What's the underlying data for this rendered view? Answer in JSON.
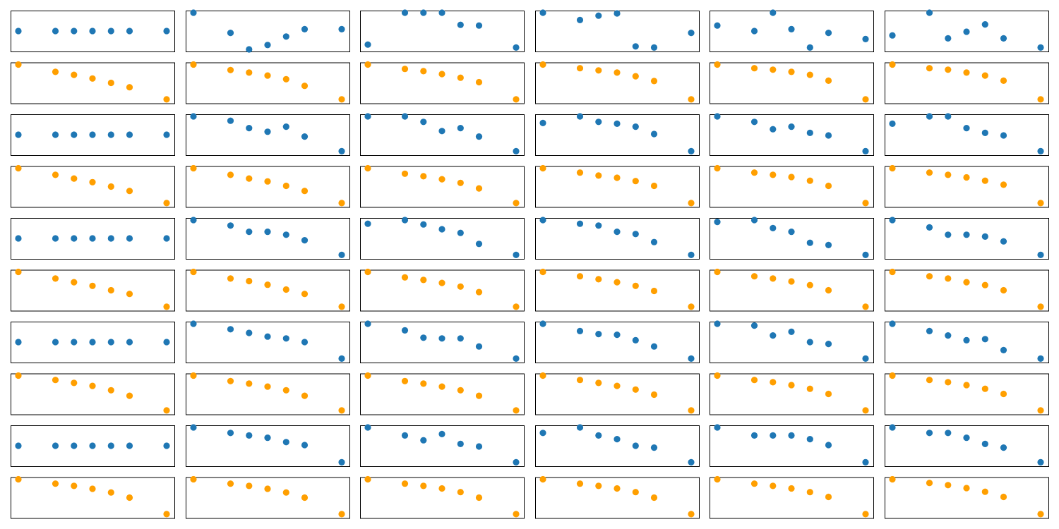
{
  "chart_data": {
    "type": "scatter",
    "layout": {
      "rows": 10,
      "cols": 6
    },
    "x": [
      0,
      2,
      3,
      4,
      5,
      6,
      8
    ],
    "series_colors": {
      "even_rows": "#1f77b4",
      "odd_rows": "#ff9f00"
    },
    "title": "",
    "xlabel": "",
    "ylabel": "",
    "grid": false,
    "ticks": false,
    "panels": [
      [
        {
          "y": [
            0.5,
            0.5,
            0.5,
            0.5,
            0.5,
            0.5,
            0.5
          ],
          "ylim": [
            0,
            1
          ]
        },
        {
          "y": [
            1.0,
            0.45,
            0.0,
            0.12,
            0.35,
            0.55,
            0.55
          ],
          "ylim": [
            0,
            1
          ]
        },
        {
          "y": [
            0.13,
            1.0,
            1.0,
            1.0,
            0.67,
            0.65,
            0.05
          ],
          "ylim": [
            0,
            1
          ]
        },
        {
          "y": [
            1.0,
            0.8,
            0.92,
            0.98,
            0.08,
            0.05,
            0.45
          ],
          "ylim": [
            0,
            1
          ]
        },
        {
          "y": [
            0.65,
            0.5,
            1.0,
            0.55,
            0.05,
            0.45,
            0.28
          ],
          "ylim": [
            0,
            1
          ]
        },
        {
          "y": [
            0.38,
            1.0,
            0.3,
            0.48,
            0.68,
            0.3,
            0.05
          ],
          "ylim": [
            0,
            1
          ]
        }
      ],
      [
        {
          "y": [
            1.0,
            0.8,
            0.72,
            0.62,
            0.5,
            0.38,
            0.05
          ],
          "ylim": [
            0,
            1
          ]
        },
        {
          "y": [
            1.0,
            0.85,
            0.78,
            0.7,
            0.6,
            0.42,
            0.05
          ],
          "ylim": [
            0,
            1
          ]
        },
        {
          "y": [
            1.0,
            0.88,
            0.82,
            0.74,
            0.64,
            0.52,
            0.05
          ],
          "ylim": [
            0,
            1
          ]
        },
        {
          "y": [
            1.0,
            0.9,
            0.84,
            0.78,
            0.68,
            0.55,
            0.05
          ],
          "ylim": [
            0,
            1
          ]
        },
        {
          "y": [
            1.0,
            0.9,
            0.86,
            0.8,
            0.72,
            0.56,
            0.05
          ],
          "ylim": [
            0,
            1
          ]
        },
        {
          "y": [
            1.0,
            0.9,
            0.86,
            0.78,
            0.7,
            0.56,
            0.05
          ],
          "ylim": [
            0,
            1
          ]
        }
      ],
      [
        {
          "y": [
            0.5,
            0.5,
            0.5,
            0.5,
            0.5,
            0.5,
            0.5
          ],
          "ylim": [
            0,
            1
          ]
        },
        {
          "y": [
            1.0,
            0.88,
            0.68,
            0.58,
            0.72,
            0.45,
            0.05
          ],
          "ylim": [
            0,
            1
          ]
        },
        {
          "y": [
            1.0,
            1.0,
            0.85,
            0.6,
            0.68,
            0.45,
            0.05
          ],
          "ylim": [
            0,
            1
          ]
        },
        {
          "y": [
            0.82,
            1.0,
            0.85,
            0.8,
            0.72,
            0.52,
            0.05
          ],
          "ylim": [
            0,
            1
          ]
        },
        {
          "y": [
            1.0,
            0.85,
            0.65,
            0.72,
            0.55,
            0.48,
            0.05
          ],
          "ylim": [
            0,
            1
          ]
        },
        {
          "y": [
            0.8,
            1.0,
            1.0,
            0.68,
            0.55,
            0.48,
            0.05
          ],
          "ylim": [
            0,
            1
          ]
        }
      ],
      [
        {
          "y": [
            1.0,
            0.82,
            0.72,
            0.62,
            0.5,
            0.38,
            0.05
          ],
          "ylim": [
            0,
            1
          ]
        },
        {
          "y": [
            1.0,
            0.82,
            0.72,
            0.64,
            0.52,
            0.38,
            0.05
          ],
          "ylim": [
            0,
            1
          ]
        },
        {
          "y": [
            1.0,
            0.85,
            0.78,
            0.7,
            0.6,
            0.45,
            0.05
          ],
          "ylim": [
            0,
            1
          ]
        },
        {
          "y": [
            1.0,
            0.88,
            0.8,
            0.74,
            0.65,
            0.52,
            0.05
          ],
          "ylim": [
            0,
            1
          ]
        },
        {
          "y": [
            1.0,
            0.88,
            0.82,
            0.76,
            0.66,
            0.52,
            0.05
          ],
          "ylim": [
            0,
            1
          ]
        },
        {
          "y": [
            1.0,
            0.88,
            0.82,
            0.75,
            0.66,
            0.55,
            0.05
          ],
          "ylim": [
            0,
            1
          ]
        }
      ],
      [
        {
          "y": [
            0.5,
            0.5,
            0.5,
            0.5,
            0.5,
            0.5,
            0.5
          ],
          "ylim": [
            0,
            1
          ]
        },
        {
          "y": [
            1.0,
            0.85,
            0.68,
            0.68,
            0.6,
            0.45,
            0.05
          ],
          "ylim": [
            0,
            1
          ]
        },
        {
          "y": [
            0.9,
            1.0,
            0.88,
            0.75,
            0.65,
            0.35,
            0.05
          ],
          "ylim": [
            0,
            1
          ]
        },
        {
          "y": [
            1.0,
            0.9,
            0.85,
            0.68,
            0.62,
            0.4,
            0.05
          ],
          "ylim": [
            0,
            1
          ]
        },
        {
          "y": [
            0.95,
            1.0,
            0.78,
            0.68,
            0.38,
            0.32,
            0.05
          ],
          "ylim": [
            0,
            1
          ]
        },
        {
          "y": [
            1.0,
            0.8,
            0.6,
            0.6,
            0.55,
            0.42,
            0.05
          ],
          "ylim": [
            0,
            1
          ]
        }
      ],
      [
        {
          "y": [
            1.0,
            0.82,
            0.72,
            0.62,
            0.5,
            0.4,
            0.05
          ],
          "ylim": [
            0,
            1
          ]
        },
        {
          "y": [
            1.0,
            0.82,
            0.75,
            0.65,
            0.52,
            0.4,
            0.05
          ],
          "ylim": [
            0,
            1
          ]
        },
        {
          "y": [
            1.0,
            0.85,
            0.78,
            0.7,
            0.6,
            0.45,
            0.05
          ],
          "ylim": [
            0,
            1
          ]
        },
        {
          "y": [
            1.0,
            0.88,
            0.8,
            0.72,
            0.62,
            0.48,
            0.05
          ],
          "ylim": [
            0,
            1
          ]
        },
        {
          "y": [
            1.0,
            0.88,
            0.82,
            0.74,
            0.64,
            0.5,
            0.05
          ],
          "ylim": [
            0,
            1
          ]
        },
        {
          "y": [
            1.0,
            0.88,
            0.82,
            0.72,
            0.64,
            0.5,
            0.05
          ],
          "ylim": [
            0,
            1
          ]
        }
      ],
      [
        {
          "y": [
            0.5,
            0.5,
            0.5,
            0.5,
            0.5,
            0.5,
            0.5
          ],
          "ylim": [
            0,
            1
          ]
        },
        {
          "y": [
            1.0,
            0.85,
            0.75,
            0.65,
            0.6,
            0.5,
            0.05
          ],
          "ylim": [
            0,
            1
          ]
        },
        {
          "y": [
            1.0,
            0.82,
            0.62,
            0.6,
            0.6,
            0.38,
            0.05
          ],
          "ylim": [
            0,
            1
          ]
        },
        {
          "y": [
            1.0,
            0.8,
            0.72,
            0.7,
            0.55,
            0.38,
            0.05
          ],
          "ylim": [
            0,
            1
          ]
        },
        {
          "y": [
            1.0,
            0.95,
            0.68,
            0.78,
            0.5,
            0.45,
            0.05
          ],
          "ylim": [
            0,
            1
          ]
        },
        {
          "y": [
            1.0,
            0.8,
            0.68,
            0.55,
            0.58,
            0.28,
            0.05
          ],
          "ylim": [
            0,
            1
          ]
        }
      ],
      [
        {
          "y": [
            1.0,
            0.88,
            0.8,
            0.72,
            0.6,
            0.45,
            0.05
          ],
          "ylim": [
            0,
            1
          ]
        },
        {
          "y": [
            1.0,
            0.85,
            0.78,
            0.7,
            0.6,
            0.45,
            0.05
          ],
          "ylim": [
            0,
            1
          ]
        },
        {
          "y": [
            1.0,
            0.85,
            0.78,
            0.7,
            0.6,
            0.45,
            0.05
          ],
          "ylim": [
            0,
            1
          ]
        },
        {
          "y": [
            1.0,
            0.88,
            0.8,
            0.72,
            0.62,
            0.48,
            0.05
          ],
          "ylim": [
            0,
            1
          ]
        },
        {
          "y": [
            1.0,
            0.88,
            0.82,
            0.74,
            0.64,
            0.5,
            0.05
          ],
          "ylim": [
            0,
            1
          ]
        },
        {
          "y": [
            1.0,
            0.88,
            0.82,
            0.74,
            0.64,
            0.5,
            0.05
          ],
          "ylim": [
            0,
            1
          ]
        }
      ],
      [
        {
          "y": [
            0.5,
            0.5,
            0.5,
            0.5,
            0.5,
            0.5,
            0.5
          ],
          "ylim": [
            0,
            1
          ]
        },
        {
          "y": [
            1.0,
            0.85,
            0.78,
            0.72,
            0.6,
            0.52,
            0.05
          ],
          "ylim": [
            0,
            1
          ]
        },
        {
          "y": [
            1.0,
            0.78,
            0.65,
            0.82,
            0.55,
            0.48,
            0.05
          ],
          "ylim": [
            0,
            1
          ]
        },
        {
          "y": [
            0.85,
            1.0,
            0.78,
            0.68,
            0.5,
            0.45,
            0.05
          ],
          "ylim": [
            0,
            1
          ]
        },
        {
          "y": [
            1.0,
            0.78,
            0.78,
            0.78,
            0.68,
            0.52,
            0.05
          ],
          "ylim": [
            0,
            1
          ]
        },
        {
          "y": [
            1.0,
            0.85,
            0.85,
            0.72,
            0.55,
            0.45,
            0.05
          ],
          "ylim": [
            0,
            1
          ]
        }
      ],
      [
        {
          "y": [
            1.0,
            0.88,
            0.82,
            0.74,
            0.64,
            0.5,
            0.05
          ],
          "ylim": [
            0,
            1
          ]
        },
        {
          "y": [
            1.0,
            0.88,
            0.82,
            0.74,
            0.64,
            0.5,
            0.05
          ],
          "ylim": [
            0,
            1
          ]
        },
        {
          "y": [
            1.0,
            0.88,
            0.82,
            0.75,
            0.65,
            0.5,
            0.05
          ],
          "ylim": [
            0,
            1
          ]
        },
        {
          "y": [
            1.0,
            0.88,
            0.82,
            0.75,
            0.65,
            0.5,
            0.05
          ],
          "ylim": [
            0,
            1
          ]
        },
        {
          "y": [
            1.0,
            0.88,
            0.82,
            0.75,
            0.65,
            0.52,
            0.05
          ],
          "ylim": [
            0,
            1
          ]
        },
        {
          "y": [
            1.0,
            0.9,
            0.84,
            0.76,
            0.66,
            0.52,
            0.05
          ],
          "ylim": [
            0,
            1
          ]
        }
      ]
    ]
  }
}
